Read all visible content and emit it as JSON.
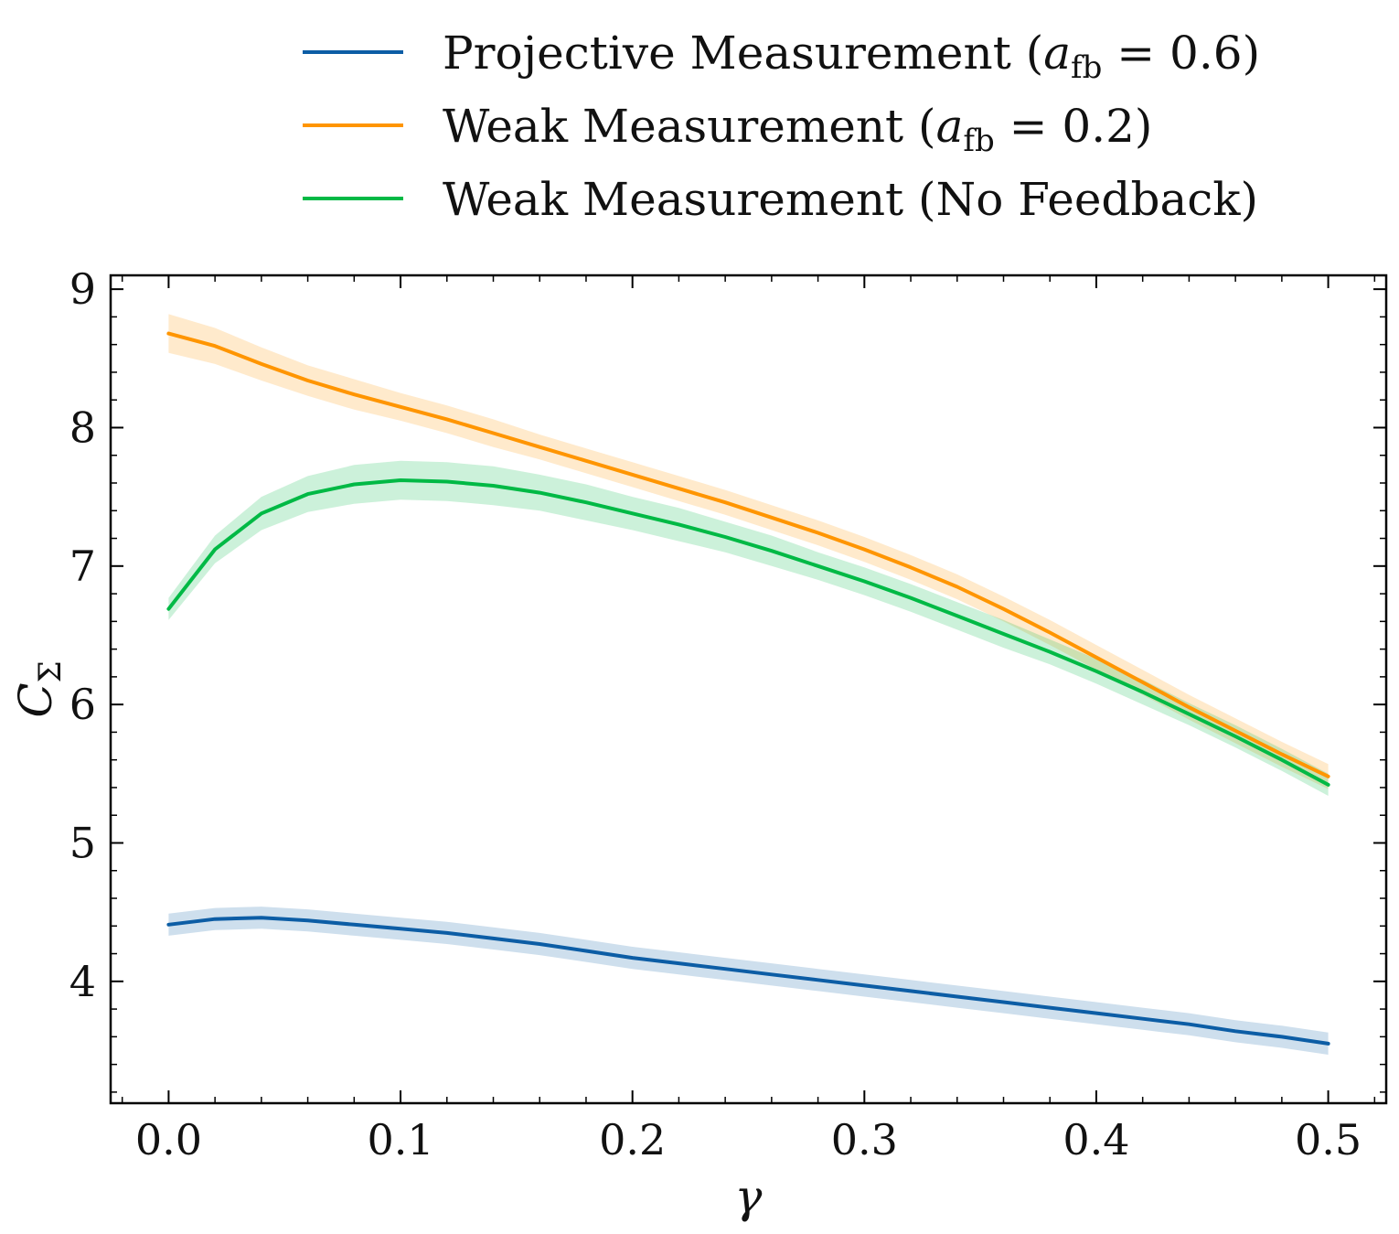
{
  "chart_data": {
    "type": "line",
    "title": "",
    "xlabel": "γ",
    "ylabel_main": "C",
    "ylabel_sub": "Σ",
    "xlim": [
      -0.025,
      0.525
    ],
    "ylim": [
      3.12,
      9.1
    ],
    "grid": false,
    "legend_position": "top-center-outside",
    "xticks": [
      0.0,
      0.1,
      0.2,
      0.3,
      0.4,
      0.5
    ],
    "xtick_labels": [
      "0.0",
      "0.1",
      "0.2",
      "0.3",
      "0.4",
      "0.5"
    ],
    "yticks": [
      4,
      5,
      6,
      7,
      8,
      9
    ],
    "ytick_labels": [
      "4",
      "5",
      "6",
      "7",
      "8",
      "9"
    ],
    "x": [
      0.0,
      0.02,
      0.04,
      0.06,
      0.08,
      0.1,
      0.12,
      0.14,
      0.16,
      0.18,
      0.2,
      0.22,
      0.24,
      0.26,
      0.28,
      0.3,
      0.32,
      0.34,
      0.36,
      0.38,
      0.4,
      0.42,
      0.44,
      0.46,
      0.48,
      0.5
    ],
    "series": [
      {
        "name": "Projective Measurement (a_fb = 0.6)",
        "legend_prefix": "Projective Measurement (",
        "legend_var": "a",
        "legend_sub": "fb",
        "legend_suffix": " = 0.6)",
        "color": "#0C5DA5",
        "band_color": "#0C5DA5",
        "values": [
          4.41,
          4.45,
          4.46,
          4.44,
          4.41,
          4.38,
          4.35,
          4.31,
          4.27,
          4.22,
          4.17,
          4.13,
          4.09,
          4.05,
          4.01,
          3.97,
          3.93,
          3.89,
          3.85,
          3.81,
          3.77,
          3.73,
          3.69,
          3.64,
          3.6,
          3.55
        ],
        "band_halfwidth": [
          0.08,
          0.08,
          0.08,
          0.08,
          0.08,
          0.08,
          0.08,
          0.08,
          0.08,
          0.08,
          0.08,
          0.08,
          0.08,
          0.08,
          0.08,
          0.08,
          0.08,
          0.08,
          0.08,
          0.08,
          0.08,
          0.08,
          0.08,
          0.08,
          0.08,
          0.08
        ]
      },
      {
        "name": "Weak Measurement (a_fb = 0.2)",
        "legend_prefix": "Weak Measurement (",
        "legend_var": "a",
        "legend_sub": "fb",
        "legend_suffix": " = 0.2)",
        "color": "#FF9500",
        "band_color": "#FF9500",
        "values": [
          8.68,
          8.59,
          8.46,
          8.34,
          8.24,
          8.15,
          8.06,
          7.96,
          7.86,
          7.76,
          7.66,
          7.56,
          7.46,
          7.35,
          7.24,
          7.12,
          6.99,
          6.85,
          6.69,
          6.52,
          6.34,
          6.16,
          5.98,
          5.81,
          5.64,
          5.48
        ],
        "band_halfwidth": [
          0.14,
          0.13,
          0.12,
          0.11,
          0.11,
          0.1,
          0.1,
          0.1,
          0.09,
          0.09,
          0.09,
          0.09,
          0.09,
          0.09,
          0.09,
          0.09,
          0.09,
          0.09,
          0.09,
          0.09,
          0.09,
          0.09,
          0.09,
          0.09,
          0.09,
          0.09
        ]
      },
      {
        "name": "Weak Measurement (No Feedback)",
        "legend_prefix": "Weak Measurement (No Feedback)",
        "legend_var": "",
        "legend_sub": "",
        "legend_suffix": "",
        "color": "#00B945",
        "band_color": "#00B945",
        "values": [
          6.69,
          7.12,
          7.38,
          7.52,
          7.59,
          7.62,
          7.61,
          7.58,
          7.53,
          7.46,
          7.38,
          7.3,
          7.21,
          7.11,
          7.0,
          6.89,
          6.77,
          6.64,
          6.51,
          6.38,
          6.24,
          6.09,
          5.93,
          5.77,
          5.6,
          5.42
        ],
        "band_halfwidth": [
          0.08,
          0.1,
          0.12,
          0.13,
          0.14,
          0.14,
          0.14,
          0.14,
          0.13,
          0.13,
          0.12,
          0.12,
          0.11,
          0.11,
          0.1,
          0.1,
          0.1,
          0.1,
          0.1,
          0.09,
          0.09,
          0.09,
          0.08,
          0.08,
          0.08,
          0.08
        ]
      }
    ]
  }
}
